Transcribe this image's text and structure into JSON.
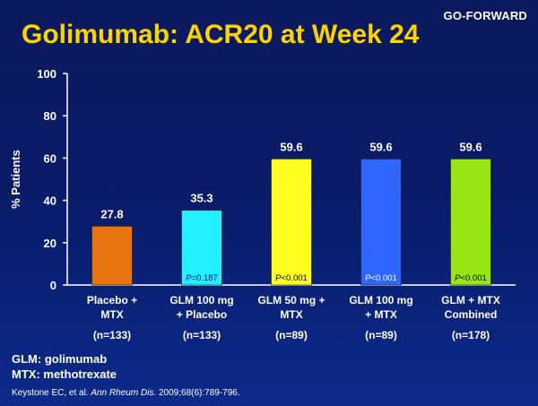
{
  "header": {
    "study_tag": "GO-FORWARD",
    "title": "Golimumab: ACR20 at Week 24"
  },
  "chart_data": {
    "type": "bar",
    "title": "Golimumab: ACR20 at Week 24",
    "ylabel": "% Patients",
    "xlabel": "",
    "ylim": [
      0,
      100
    ],
    "yticks": [
      0,
      20,
      40,
      60,
      80,
      100
    ],
    "grid": false,
    "legend": "none",
    "categories": [
      [
        "Placebo +",
        "MTX",
        "(n=133)"
      ],
      [
        "GLM 100 mg",
        "+ Placebo",
        "(n=133)"
      ],
      [
        "GLM 50 mg +",
        "MTX",
        "(n=89)"
      ],
      [
        "GLM 100 mg",
        "+ MTX",
        "(n=89)"
      ],
      [
        "GLM + MTX",
        "Combined",
        "(n=178)"
      ]
    ],
    "values": [
      27.8,
      35.3,
      59.6,
      59.6,
      59.6
    ],
    "value_labels": [
      "27.8",
      "35.3",
      "59.6",
      "59.6",
      "59.6"
    ],
    "p_values": [
      "",
      "=0.187",
      "<0.001",
      "<0.001",
      "<0.001"
    ],
    "p_prefix": "P",
    "colors": [
      "#e87511",
      "#22f0ff",
      "#ffff22",
      "#2f66ff",
      "#99e615"
    ],
    "p_label_colors": [
      "#000000",
      "#0000aa",
      "#000000",
      "#ffffff",
      "#000000"
    ]
  },
  "legend_notes": [
    "GLM:  golimumab",
    "MTX:  methotrexate"
  ],
  "citation": {
    "authors": "Keystone EC, et al.",
    "journal": "Ann Rheum Dis.",
    "details": "2009;68(6):789-796."
  }
}
